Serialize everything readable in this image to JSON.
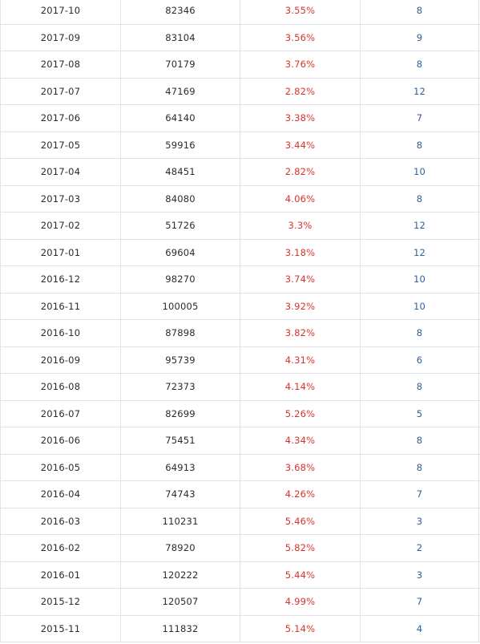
{
  "colors": {
    "rate": "#d9332b",
    "rank": "#2f5f9e",
    "text": "#2b2b2b",
    "border": "#dfe4e8"
  },
  "rows": [
    {
      "date": "2017-10",
      "count": "82346",
      "rate": "3.55%",
      "rank": "8"
    },
    {
      "date": "2017-09",
      "count": "83104",
      "rate": "3.56%",
      "rank": "9"
    },
    {
      "date": "2017-08",
      "count": "70179",
      "rate": "3.76%",
      "rank": "8"
    },
    {
      "date": "2017-07",
      "count": "47169",
      "rate": "2.82%",
      "rank": "12"
    },
    {
      "date": "2017-06",
      "count": "64140",
      "rate": "3.38%",
      "rank": "7"
    },
    {
      "date": "2017-05",
      "count": "59916",
      "rate": "3.44%",
      "rank": "8"
    },
    {
      "date": "2017-04",
      "count": "48451",
      "rate": "2.82%",
      "rank": "10"
    },
    {
      "date": "2017-03",
      "count": "84080",
      "rate": "4.06%",
      "rank": "8"
    },
    {
      "date": "2017-02",
      "count": "51726",
      "rate": "3.3%",
      "rank": "12"
    },
    {
      "date": "2017-01",
      "count": "69604",
      "rate": "3.18%",
      "rank": "12"
    },
    {
      "date": "2016-12",
      "count": "98270",
      "rate": "3.74%",
      "rank": "10"
    },
    {
      "date": "2016-11",
      "count": "100005",
      "rate": "3.92%",
      "rank": "10"
    },
    {
      "date": "2016-10",
      "count": "87898",
      "rate": "3.82%",
      "rank": "8"
    },
    {
      "date": "2016-09",
      "count": "95739",
      "rate": "4.31%",
      "rank": "6"
    },
    {
      "date": "2016-08",
      "count": "72373",
      "rate": "4.14%",
      "rank": "8"
    },
    {
      "date": "2016-07",
      "count": "82699",
      "rate": "5.26%",
      "rank": "5"
    },
    {
      "date": "2016-06",
      "count": "75451",
      "rate": "4.34%",
      "rank": "8"
    },
    {
      "date": "2016-05",
      "count": "64913",
      "rate": "3.68%",
      "rank": "8"
    },
    {
      "date": "2016-04",
      "count": "74743",
      "rate": "4.26%",
      "rank": "7"
    },
    {
      "date": "2016-03",
      "count": "110231",
      "rate": "5.46%",
      "rank": "3"
    },
    {
      "date": "2016-02",
      "count": "78920",
      "rate": "5.82%",
      "rank": "2"
    },
    {
      "date": "2016-01",
      "count": "120222",
      "rate": "5.44%",
      "rank": "3"
    },
    {
      "date": "2015-12",
      "count": "120507",
      "rate": "4.99%",
      "rank": "7"
    },
    {
      "date": "2015-11",
      "count": "111832",
      "rate": "5.14%",
      "rank": "4"
    }
  ]
}
